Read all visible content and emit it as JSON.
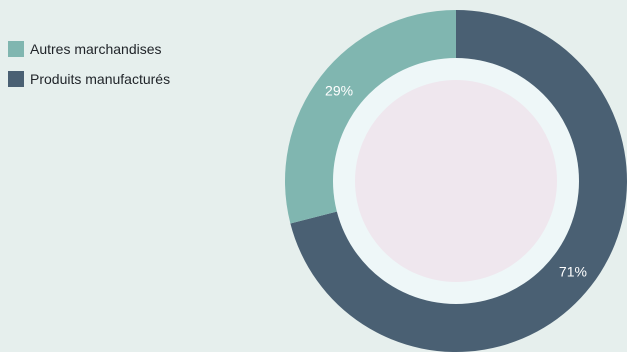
{
  "chart_data": {
    "type": "pie",
    "donut": true,
    "categories": [
      "Autres marchandises",
      "Produits manufacturés"
    ],
    "values": [
      29,
      71
    ],
    "value_labels": [
      "29%",
      "71%"
    ],
    "colors": [
      "#80b6b0",
      "#4a6073"
    ],
    "legend_position": "top-left",
    "start_angle": "12 o'clock",
    "title": "",
    "colors_extra": {
      "background": "#e6efed",
      "inner_ring": "#eef7f8",
      "center": "#efe7ee"
    }
  }
}
